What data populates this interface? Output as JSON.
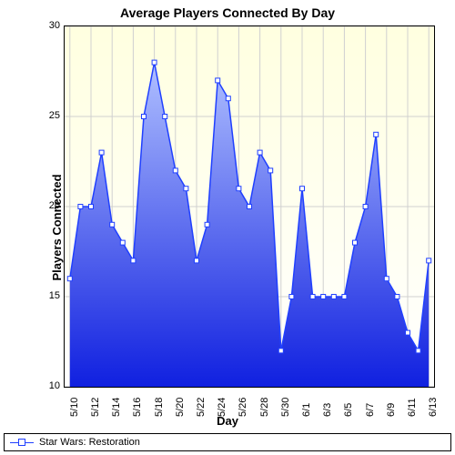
{
  "chart": {
    "type": "area",
    "title": "Average Players Connected By Day",
    "title_fontsize": 14,
    "xlabel": "Day",
    "ylabel": "Players Connected",
    "label_fontsize": 13,
    "tick_fontsize": 11,
    "ylim": [
      10,
      30
    ],
    "ytick_step": 5,
    "yticks": [
      10,
      15,
      20,
      25,
      30
    ],
    "x_categories": [
      "5/10",
      "5/11",
      "5/12",
      "5/13",
      "5/14",
      "5/15",
      "5/16",
      "5/17",
      "5/18",
      "5/19",
      "5/20",
      "5/21",
      "5/22",
      "5/23",
      "5/24",
      "5/25",
      "5/26",
      "5/27",
      "5/28",
      "5/29",
      "5/30",
      "5/31",
      "6/1",
      "6/2",
      "6/3",
      "6/4",
      "6/5",
      "6/6",
      "6/7",
      "6/8",
      "6/9",
      "6/10",
      "6/11",
      "6/12",
      "6/13"
    ],
    "x_tick_labels": [
      "5/10",
      "5/12",
      "5/14",
      "5/16",
      "5/18",
      "5/20",
      "5/22",
      "5/24",
      "5/26",
      "5/28",
      "5/30",
      "6/1",
      "6/3",
      "6/5",
      "6/7",
      "6/9",
      "6/11",
      "6/13"
    ],
    "series": [
      {
        "name": "Star Wars: Restoration",
        "line_color": "#2040ff",
        "marker_fill": "#ffffff",
        "marker_stroke": "#2040ff",
        "marker_size": 5,
        "line_width": 1.5,
        "fill_gradient_top": "#b0c0ff",
        "fill_gradient_bottom": "#1020e0",
        "values": [
          16,
          20,
          20,
          23,
          19,
          18,
          17,
          25,
          28,
          25,
          22,
          21,
          17,
          19,
          27,
          26,
          21,
          20,
          23,
          22,
          12,
          15,
          21,
          15,
          15,
          15,
          15,
          18,
          20,
          24,
          16,
          15,
          13,
          12,
          17
        ]
      }
    ],
    "plot_bg_gradient_top": "#ffffe0",
    "plot_bg_gradient_bottom": "#ffffff",
    "grid_color": "#d0d0d0",
    "axis_color": "#000000",
    "background_color": "#ffffff"
  }
}
